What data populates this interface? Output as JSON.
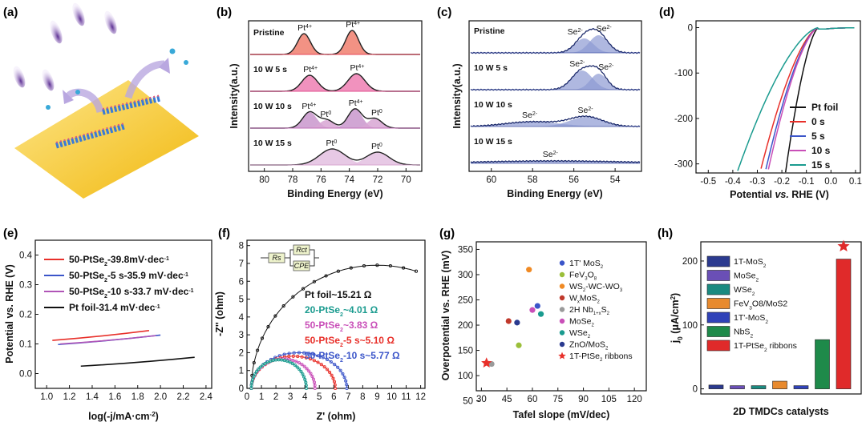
{
  "panels": {
    "a": {
      "label": "(a)"
    },
    "b": {
      "label": "(b)",
      "xlabel": "Binding Energy (eV)",
      "ylabel": "Intensity(a.u.)",
      "xticks": [
        "80",
        "78",
        "76",
        "74",
        "72",
        "70"
      ],
      "rows": [
        {
          "name": "Pristine",
          "peaks": [
            "Pt4+",
            "Pt4+"
          ],
          "color": "#e8485b"
        },
        {
          "name": "10 W  5 s",
          "peaks": [
            "Pt4+",
            "Pt4+"
          ],
          "color": "#e0508e"
        },
        {
          "name": "10 W  10 s",
          "peaks": [
            "Pt4+",
            "Pt0",
            "Pt4+",
            "Pt0"
          ],
          "color": "#c070b8"
        },
        {
          "name": "10 W  15 s",
          "peaks": [
            "Pt0",
            "Pt0"
          ],
          "color": "#d7a7d0"
        }
      ]
    },
    "c": {
      "label": "(c)",
      "xlabel": "Binding Energy (eV)",
      "ylabel": "Intensity(a.u.)",
      "xticks": [
        "60",
        "58",
        "56",
        "54"
      ],
      "rows": [
        {
          "name": "Pristine",
          "peaks": [
            "Se2-",
            "Se2-"
          ]
        },
        {
          "name": "10 W  5 s",
          "peaks": [
            "Se2-",
            "Se2-"
          ]
        },
        {
          "name": "10 W  10 s",
          "peaks": [
            "Se2-",
            "Se2-"
          ]
        },
        {
          "name": "10 W  15 s",
          "peaks": [
            "Se2-"
          ]
        }
      ]
    },
    "d": {
      "label": "(d)",
      "xlabel_parts": [
        "Potential ",
        "vs.",
        " RHE (V)"
      ],
      "yticks": [
        "0",
        "-100",
        "-200",
        "-300"
      ],
      "xticks": [
        "-0.5",
        "-0.4",
        "-0.3",
        "-0.2",
        "-0.1",
        "0.0",
        "0.1"
      ],
      "legend": [
        "Pt foil",
        "0 s",
        "5 s",
        "10 s",
        "15 s"
      ]
    },
    "e": {
      "label": "(e)",
      "xlabel": "log(-j/mA·cm",
      "ylabel": "Potential vs. RHE (V)",
      "xticks": [
        "1.0",
        "1.2",
        "1.4",
        "1.6",
        "1.8",
        "2.0",
        "2.2",
        "2.4"
      ],
      "yticks": [
        "0.0",
        "0.1",
        "0.2",
        "0.3",
        "0.4"
      ],
      "legend": [
        {
          "label": "50-PtSe",
          "rest": "-39.8mV·dec",
          "color": "#e8302a"
        },
        {
          "label": "50-PtSe",
          "rest": "-5 s-35.9 mV·dec",
          "color": "#3b55c9"
        },
        {
          "label": "50-PtSe",
          "rest": "-10 s-33.7 mV·dec",
          "color": "#b055b7"
        },
        {
          "label": "Pt foil-31.4 mV·dec",
          "rest": "",
          "color": "#111111"
        }
      ]
    },
    "f": {
      "label": "(f)",
      "xlabel": "Z' (ohm)",
      "ylabel": "-Z'' (ohm)",
      "xticks": [
        "0",
        "1",
        "2",
        "3",
        "4",
        "5",
        "6",
        "7",
        "8",
        "9",
        "10",
        "11",
        "12"
      ],
      "yticks": [
        "0",
        "1",
        "2",
        "3",
        "4",
        "5",
        "6",
        "7",
        "8"
      ],
      "circuit": [
        "Rs",
        "Rct",
        "CPE"
      ],
      "legend": [
        {
          "text": "Pt foil~15.21 Ω",
          "color": "#111111"
        },
        {
          "text": "20-PtSe",
          "rest": "~4.01 Ω",
          "color": "#1a9b8f"
        },
        {
          "text": "50-PtSe",
          "rest": "~3.83 Ω",
          "color": "#c94fb8"
        },
        {
          "text": "50-PtSe",
          "rest": "-5 s~5.10 Ω",
          "color": "#e8302a"
        },
        {
          "text": "50-PtSe",
          "rest": "-10 s~5.77 Ω",
          "color": "#3b55c9"
        }
      ]
    },
    "g": {
      "label": "(g)",
      "xlabel": "Tafel slope (mV/dec)",
      "ylabel": "Overpotential vs. RHE (mV)",
      "xticks": [
        "30",
        "45",
        "60",
        "75",
        "90",
        "105",
        "120"
      ],
      "yticks": [
        "50",
        "100",
        "150",
        "200",
        "250",
        "300",
        "350"
      ],
      "legend": [
        "1T' MoS",
        "FeV",
        "WS",
        "W",
        "2H Nb",
        "MoSe",
        "WSe",
        "ZnO/MoS",
        "1T-PtSe"
      ]
    },
    "h": {
      "label": "(h)",
      "xlabel": "2D TMDCs catalysts",
      "ylabel": "j",
      "yticks": [
        "0",
        "100",
        "200"
      ],
      "legend": [
        "1T-MoS",
        "MoSe",
        "WSe",
        "FeV",
        "1T'-MoS",
        "NbS",
        "1T-PtSe"
      ]
    }
  },
  "chart_data": [
    {
      "type": "line",
      "title": "(d)",
      "xlabel": "Potential vs. RHE (V)",
      "ylabel": "",
      "xlim": [
        -0.55,
        0.12
      ],
      "ylim": [
        -320,
        15
      ],
      "series": [
        {
          "name": "Pt foil",
          "color": "#111111",
          "onset": -0.18
        },
        {
          "name": "0 s",
          "color": "#e8302a",
          "onset": -0.28
        },
        {
          "name": "5 s",
          "color": "#3b55c9",
          "onset": -0.26
        },
        {
          "name": "10 s",
          "color": "#c94fb8",
          "onset": -0.25
        },
        {
          "name": "15 s",
          "color": "#1a9b8f",
          "onset": -0.37
        }
      ]
    },
    {
      "type": "line",
      "title": "(e)",
      "xlabel": "log(-j/mA·cm-2)",
      "ylabel": "Potential vs. RHE (V)",
      "xlim": [
        0.9,
        2.45
      ],
      "ylim": [
        -0.05,
        0.45
      ],
      "series": [
        {
          "name": "50-PtSe2-39.8mV·dec-1",
          "color": "#e8302a",
          "x": [
            1.05,
            1.9
          ],
          "y": [
            0.112,
            0.145
          ]
        },
        {
          "name": "50-PtSe2-5 s-35.9 mV·dec-1",
          "color": "#3b55c9",
          "x": [
            1.1,
            2.0
          ],
          "y": [
            0.098,
            0.13
          ]
        },
        {
          "name": "50-PtSe2-10 s-33.7 mV·dec-1",
          "color": "#b055b7",
          "x": [
            1.12,
            1.96
          ],
          "y": [
            0.1,
            0.128
          ]
        },
        {
          "name": "Pt foil-31.4 mV·dec-1",
          "color": "#111111",
          "x": [
            1.3,
            2.3
          ],
          "y": [
            0.025,
            0.055
          ]
        }
      ]
    },
    {
      "type": "line",
      "title": "(f)",
      "xlabel": "Z' (ohm)",
      "ylabel": "-Z'' (ohm)",
      "xlim": [
        0,
        12.3
      ],
      "ylim": [
        0,
        8.3
      ],
      "series": [
        {
          "name": "Pt foil~15.21 Ω",
          "color": "#111111",
          "center": 9.0,
          "radius": 8.6,
          "ymax": 6.9
        },
        {
          "name": "50-PtSe2-10 s~5.77 Ω",
          "color": "#3b55c9",
          "center": 3.6,
          "radius": 3.0,
          "ymax": 2.0
        },
        {
          "name": "50-PtSe2-5 s~5.10 Ω",
          "color": "#e8302a",
          "center": 3.2,
          "radius": 2.7,
          "ymax": 1.8
        },
        {
          "name": "50-PtSe2~3.83 Ω",
          "color": "#c94fb8",
          "center": 2.5,
          "radius": 2.1,
          "ymax": 1.65
        },
        {
          "name": "20-PtSe2~4.01 Ω",
          "color": "#1a9b8f",
          "center": 2.2,
          "radius": 2.0,
          "ymax": 1.6
        }
      ]
    },
    {
      "type": "scatter",
      "title": "(g)",
      "xlabel": "Tafel slope (mV/dec)",
      "ylabel": "Overpotential vs. RHE (mV)",
      "xlim": [
        27,
        127
      ],
      "ylim": [
        70,
        365
      ],
      "points": [
        {
          "name": "1T' MoS2",
          "x": 63,
          "y": 238,
          "color": "#3b55c9"
        },
        {
          "name": "FeV3O8/MoS2",
          "x": 52,
          "y": 160,
          "color": "#9bbf3a"
        },
        {
          "name": "WS2-WC-WO3",
          "x": 58,
          "y": 310,
          "color": "#f08a24"
        },
        {
          "name": "WxMoS2",
          "x": 46,
          "y": 208,
          "color": "#c0392b"
        },
        {
          "name": "2H Nb1+xS2",
          "x": 36,
          "y": 123,
          "color": "#9a9a9a"
        },
        {
          "name": "MoSe2",
          "x": 60,
          "y": 230,
          "color": "#c94fb8"
        },
        {
          "name": "WSe2",
          "x": 65,
          "y": 222,
          "color": "#1a9b8f"
        },
        {
          "name": "ZnO/MoS2",
          "x": 51,
          "y": 205,
          "color": "#2a3a8f"
        },
        {
          "name": "1T-PtSe2 ribbons",
          "x": 33,
          "y": 125,
          "color": "#e8302a",
          "marker": "star"
        }
      ]
    },
    {
      "type": "bar",
      "title": "(h)",
      "xlabel": "2D TMDCs catalysts",
      "ylabel": "j0 (μA/cm2)",
      "ylim": [
        -8,
        230
      ],
      "categories": [
        "1T-MoS2",
        "MoSe2",
        "WSe2",
        "FeV3O8/MoS2",
        "1T'-MoS2",
        "NbS2",
        "1T-PtSe2 ribbons"
      ],
      "values": [
        6,
        5,
        5,
        12,
        5,
        77,
        203
      ],
      "colors": [
        "#2b3a8f",
        "#6a4fb6",
        "#1b8a80",
        "#e88a2e",
        "#3042b8",
        "#1e8a4a",
        "#e02a2a"
      ]
    }
  ]
}
